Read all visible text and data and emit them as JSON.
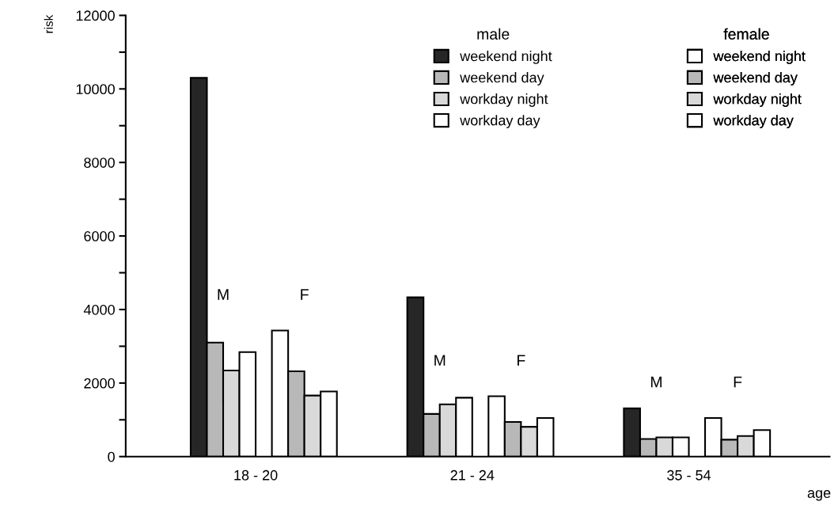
{
  "chart_data": {
    "type": "bar",
    "xlabel": "age",
    "ylabel": "risk",
    "categories": [
      "18 - 20",
      "21 - 24",
      "35 - 54"
    ],
    "series": [
      {
        "name": "weekend night",
        "color": "#262626",
        "values": [
          10300,
          4330,
          1310
        ]
      },
      {
        "name": "weekend day",
        "color": "#b8b8b8",
        "values": [
          3100,
          1160,
          480
        ]
      },
      {
        "name": "workday night",
        "color": "#d9d9d9",
        "values": [
          2340,
          1420,
          520
        ]
      },
      {
        "name": "workday day",
        "color": "#ffffff",
        "values": [
          2840,
          1600,
          520
        ]
      },
      {
        "name": "weekend night",
        "color": "#ffffff",
        "values": [
          3430,
          1640,
          1050
        ]
      },
      {
        "name": "weekend day",
        "color": "#b8b8b8",
        "values": [
          2320,
          940,
          460
        ]
      },
      {
        "name": "workday night",
        "color": "#d9d9d9",
        "values": [
          1660,
          810,
          560
        ]
      },
      {
        "name": "workday day",
        "color": "#ffffff",
        "values": [
          1770,
          1050,
          720
        ]
      }
    ],
    "ylim": [
      0,
      12000
    ],
    "yticks": [
      0,
      {
        "value": 1000,
        "label": null
      },
      2000,
      {
        "value": 3000,
        "label": null
      },
      4000,
      {
        "value": 5000,
        "label": null
      },
      6000,
      {
        "value": 7000,
        "label": null
      },
      8000,
      {
        "value": 9000,
        "label": null
      },
      10000,
      {
        "value": 11000,
        "label": null
      },
      12000
    ],
    "annotations": [
      "male",
      "female",
      "M",
      "F",
      "M",
      "F",
      "M",
      "F"
    ],
    "legend": "top right",
    "grid": false
  }
}
